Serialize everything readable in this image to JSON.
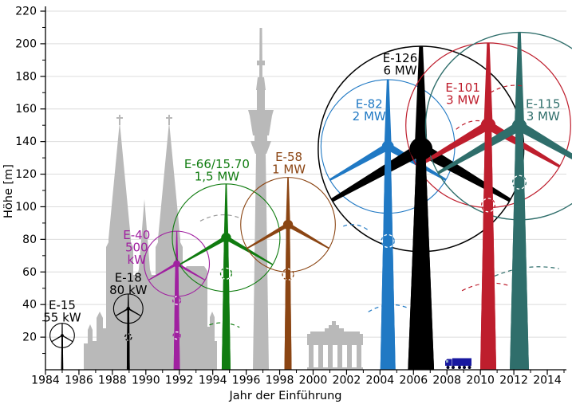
{
  "chart_data": {
    "type": "pictorial-timeline",
    "title": "",
    "xlabel": "Jahr der Einführung",
    "ylabel": "Höhe [m]",
    "xlim": [
      1984,
      2015
    ],
    "ylim": [
      0,
      220
    ],
    "x_ticks": [
      1984,
      1986,
      1988,
      1990,
      1992,
      1994,
      1996,
      1998,
      2000,
      2002,
      2004,
      2006,
      2008,
      2010,
      2012,
      2014
    ],
    "x_minor_step": 1,
    "y_ticks": [
      20,
      40,
      60,
      80,
      100,
      120,
      140,
      160,
      180,
      200,
      220
    ],
    "y_minor_step": 10,
    "grid": "horizontal",
    "turbines": [
      {
        "model": "E-15",
        "power": "55 kW",
        "year": 1985.0,
        "hub_height_m": 21,
        "rotor_diameter_m": 15,
        "color": "#000000",
        "tower_base_w_m": 1.2,
        "tower_top_w_m": 0.8,
        "blade_root_w_m": 0.7,
        "hub_r_m": 0.9,
        "label": {
          "lines": [
            "E-15",
            "55 kW"
          ],
          "x_year": 1985.0,
          "top_m": 43.5
        }
      },
      {
        "model": "E-18",
        "power": "80 kW",
        "year": 1988.95,
        "hub_height_m": 37.5,
        "rotor_diameter_m": 18,
        "color": "#000000",
        "tower_base_w_m": 1.8,
        "tower_top_w_m": 1.1,
        "blade_root_w_m": 0.9,
        "hub_r_m": 1.1,
        "label": {
          "lines": [
            "E-18",
            "80 kW"
          ],
          "x_year": 1988.95,
          "top_m": 60.5
        }
      },
      {
        "model": "E-40",
        "power": "500 kW",
        "year": 1991.85,
        "hub_height_m": 65,
        "rotor_diameter_m": 40,
        "color": "#A020A0",
        "tower_base_w_m": 3.8,
        "tower_top_w_m": 1.9,
        "blade_root_w_m": 1.7,
        "hub_r_m": 2.1,
        "label": {
          "lines": [
            "E-40",
            "500",
            "kW"
          ],
          "x_year": 1989.45,
          "top_m": 86.5
        }
      },
      {
        "model": "E-66/15.70",
        "power": "1,5 MW",
        "year": 1994.8,
        "hub_height_m": 81,
        "rotor_diameter_m": 66,
        "color": "#107C10",
        "tower_base_w_m": 5.4,
        "tower_top_w_m": 2.6,
        "blade_root_w_m": 2.7,
        "hub_r_m": 3.0,
        "label": {
          "lines": [
            "E-66/15.70",
            "1,5 MW"
          ],
          "x_year": 1994.25,
          "top_m": 130
        }
      },
      {
        "model": "E-58",
        "power": "1 MW",
        "year": 1998.5,
        "hub_height_m": 89,
        "rotor_diameter_m": 58,
        "color": "#8B4513",
        "tower_base_w_m": 4.4,
        "tower_top_w_m": 2.2,
        "blade_root_w_m": 2.7,
        "hub_r_m": 3.0,
        "label": {
          "lines": [
            "E-58",
            "1 MW"
          ],
          "x_year": 1998.55,
          "top_m": 134.5
        }
      },
      {
        "model": "E-82",
        "power": "2 MW",
        "year": 2004.47,
        "hub_height_m": 137,
        "rotor_diameter_m": 82,
        "color": "#2079C4",
        "tower_base_w_m": 9.3,
        "tower_top_w_m": 3.4,
        "blade_root_w_m": 4.4,
        "hub_r_m": 3.6,
        "label": {
          "lines": [
            "E-82",
            "2 MW"
          ],
          "x_year": 2003.35,
          "top_m": 167
        }
      },
      {
        "model": "E-126",
        "power": "6 MW",
        "year": 2006.45,
        "hub_height_m": 135.5,
        "rotor_diameter_m": 126,
        "color": "#000000",
        "tower_base_w_m": 16.0,
        "tower_top_w_m": 5.4,
        "blade_root_w_m": 7.8,
        "hub_r_m": 7.0,
        "label": {
          "lines": [
            "E-126",
            "6 MW"
          ],
          "x_year": 2005.2,
          "top_m": 195
        }
      },
      {
        "model": "E-101",
        "power": "3 MW",
        "year": 2010.47,
        "hub_height_m": 150,
        "rotor_diameter_m": 101,
        "color": "#BE1E2D",
        "tower_base_w_m": 9.8,
        "tower_top_w_m": 3.9,
        "blade_root_w_m": 5.4,
        "hub_r_m": 4.5,
        "label": {
          "lines": [
            "E-101",
            "3 MW"
          ],
          "x_year": 2008.95,
          "top_m": 177
        }
      },
      {
        "model": "E-115",
        "power": "3 MW",
        "year": 2012.33,
        "hub_height_m": 149.5,
        "rotor_diameter_m": 115,
        "color": "#2F6E6B",
        "tower_base_w_m": 11.7,
        "tower_top_w_m": 4.4,
        "blade_root_w_m": 5.9,
        "hub_r_m": 4.5,
        "label": {
          "lines": [
            "E-115",
            "3 MW"
          ],
          "x_year": 2013.75,
          "top_m": 167
        }
      }
    ],
    "landmarks": [
      {
        "name": "cathedral-silhouette",
        "peak_height_m": 153,
        "x_year_center": 1989.9
      },
      {
        "name": "tv-tower-silhouette",
        "peak_height_m": 210,
        "x_year_center": 1996.9
      },
      {
        "name": "city-gate-silhouette",
        "peak_height_m": 29,
        "x_year_center": 2001.3
      },
      {
        "name": "truck",
        "peak_height_m": 7,
        "x_year_center": 2008.8
      }
    ],
    "decorations": {
      "dashed_circles": [
        {
          "color": "#000000",
          "x_year": 1988.95,
          "height_m": 20,
          "r_m": 2.0
        },
        {
          "color": "#A020A0",
          "x_year": 1991.85,
          "height_m": 42.5,
          "r_m": 2.4
        },
        {
          "color": "#A020A0",
          "x_year": 1991.85,
          "height_m": 21,
          "r_m": 2.2
        },
        {
          "color": "#107C10",
          "x_year": 1994.8,
          "height_m": 59,
          "r_m": 3.4
        },
        {
          "color": "#8B4513",
          "x_year": 1998.5,
          "height_m": 58.5,
          "r_m": 3.4
        },
        {
          "color": "#2079C4",
          "x_year": 2004.47,
          "height_m": 79,
          "r_m": 3.9
        },
        {
          "color": "#BE1E2D",
          "x_year": 2010.47,
          "height_m": 101,
          "r_m": 4.1
        },
        {
          "color": "#2F6E6B",
          "x_year": 2012.33,
          "height_m": 115,
          "r_m": 4.1
        }
      ],
      "dashed_arcs": [
        {
          "color": "#999999",
          "x1": 1993.25,
          "h1": 91.2,
          "x2": 1995.7,
          "h2": 92.8,
          "bow_m": 3
        },
        {
          "color": "#107C10",
          "x1": 1993.8,
          "h1": 27.5,
          "x2": 1995.6,
          "h2": 26,
          "bow_m": 2
        },
        {
          "color": "#2079C4",
          "x1": 2001.8,
          "h1": 88,
          "x2": 2003.25,
          "h2": 86,
          "bow_m": 2
        },
        {
          "color": "#2079C4",
          "x1": 2003.3,
          "h1": 35.5,
          "x2": 2005.65,
          "h2": 38,
          "bow_m": 3
        },
        {
          "color": "#BE1E2D",
          "x1": 2008.55,
          "h1": 147.5,
          "x2": 2010.1,
          "h2": 152.5,
          "bow_m": 2
        },
        {
          "color": "#BE1E2D",
          "x1": 2008.9,
          "h1": 48.5,
          "x2": 2011.75,
          "h2": 51.5,
          "bow_m": 3
        },
        {
          "color": "#BE1E2D",
          "x1": 2010.6,
          "h1": 170,
          "x2": 2012.55,
          "h2": 174,
          "bow_m": 2
        },
        {
          "color": "#2F6E6B",
          "x1": 2010.85,
          "h1": 57.5,
          "x2": 2014.7,
          "h2": 62,
          "bow_m": 3
        }
      ]
    }
  },
  "colors": {
    "background": "#ffffff",
    "grid": "#dcdcdc",
    "axis": "#000000",
    "silhouette_gray": "#b9b9b9",
    "truck_blue": "#1818A0",
    "truck_window": "#8FA8C8",
    "truck_wheel": "#000028"
  }
}
